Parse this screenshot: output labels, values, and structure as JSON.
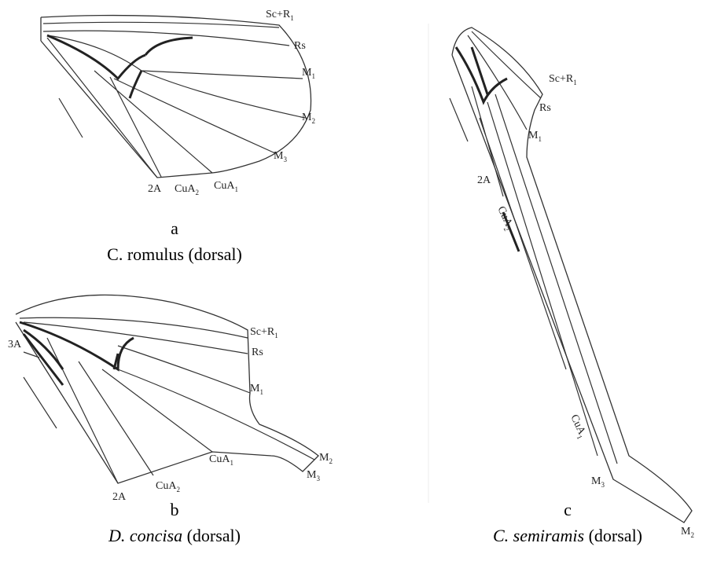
{
  "panels": [
    {
      "letter": "a",
      "species": "C. romulus",
      "note": "(dorsal)",
      "labels": [
        {
          "main": "Sc+R",
          "sub": "1"
        },
        {
          "main": "Rs"
        },
        {
          "main": "M",
          "sub": "1"
        },
        {
          "main": "M",
          "sub": "2"
        },
        {
          "main": "M",
          "sub": "3"
        },
        {
          "main": "2A"
        },
        {
          "main": "CuA",
          "sub": "2"
        },
        {
          "main": "CuA",
          "sub": "1"
        }
      ]
    },
    {
      "letter": "b",
      "species": "D. concisa",
      "note": "(dorsal)",
      "labels": [
        {
          "main": "Sc+R",
          "sub": "1"
        },
        {
          "main": "Rs"
        },
        {
          "main": "3A"
        },
        {
          "main": "M",
          "sub": "1"
        },
        {
          "main": "CuA",
          "sub": "1"
        },
        {
          "main": "M",
          "sub": "2"
        },
        {
          "main": "M",
          "sub": "3"
        },
        {
          "main": "CuA",
          "sub": "2"
        },
        {
          "main": "2A"
        }
      ]
    },
    {
      "letter": "c",
      "species": "C. semiramis",
      "note": "(dorsal)",
      "labels": [
        {
          "main": "Sc+R",
          "sub": "1"
        },
        {
          "main": "Rs"
        },
        {
          "main": "M",
          "sub": "1"
        },
        {
          "main": "2A"
        },
        {
          "main": "CuA",
          "sub": "2"
        },
        {
          "main": "CuA",
          "sub": "1"
        },
        {
          "main": "M",
          "sub": "3"
        },
        {
          "main": "M",
          "sub": "2"
        }
      ]
    }
  ]
}
